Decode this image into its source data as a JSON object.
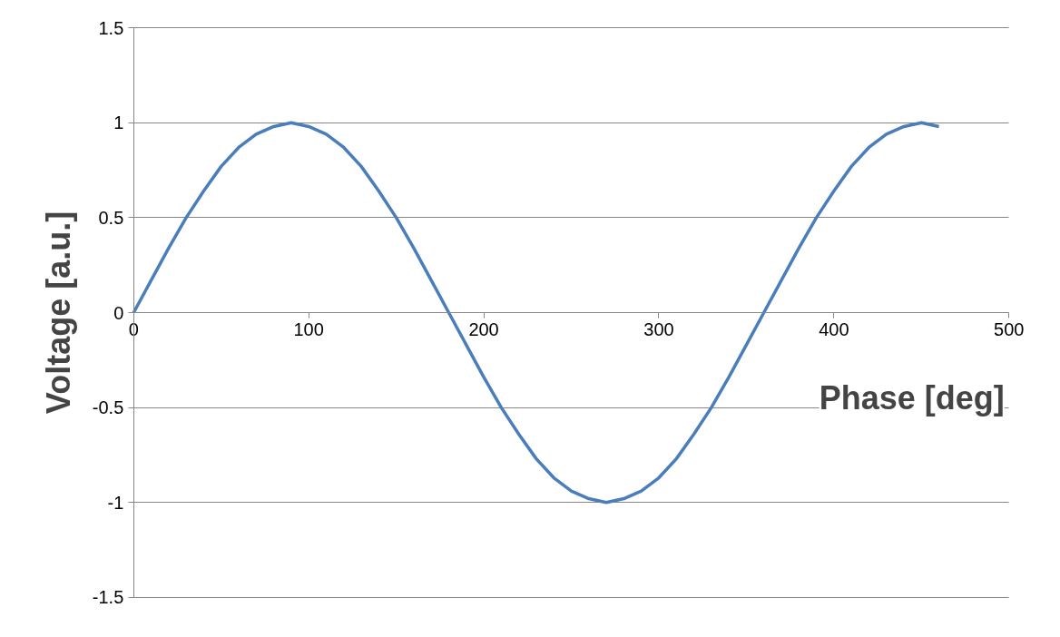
{
  "chart_data": {
    "type": "line",
    "xlabel": "Phase [deg]",
    "ylabel": "Voltage [a.u.]",
    "x": [
      0,
      10,
      20,
      30,
      40,
      50,
      60,
      70,
      80,
      90,
      100,
      110,
      120,
      130,
      140,
      150,
      160,
      170,
      180,
      190,
      200,
      210,
      220,
      230,
      240,
      250,
      260,
      270,
      280,
      290,
      300,
      310,
      320,
      330,
      340,
      350,
      360,
      370,
      380,
      390,
      400,
      410,
      420,
      430,
      440,
      450,
      460
    ],
    "series": [
      {
        "color": "#4a7ebb",
        "values": [
          0,
          0.17,
          0.34,
          0.5,
          0.64,
          0.77,
          0.87,
          0.94,
          0.98,
          1,
          0.98,
          0.94,
          0.87,
          0.77,
          0.64,
          0.5,
          0.34,
          0.17,
          0,
          -0.17,
          -0.34,
          -0.5,
          -0.64,
          -0.77,
          -0.87,
          -0.94,
          -0.98,
          -1,
          -0.98,
          -0.94,
          -0.87,
          -0.77,
          -0.64,
          -0.5,
          -0.34,
          -0.17,
          0,
          0.17,
          0.34,
          0.5,
          0.64,
          0.77,
          0.87,
          0.94,
          0.98,
          1,
          0.98
        ]
      }
    ],
    "xlim": [
      0,
      500
    ],
    "xticks": [
      0,
      100,
      200,
      300,
      400,
      500
    ],
    "ylim": [
      -1.5,
      1.5
    ],
    "yticks": [
      -1.5,
      -1,
      -0.5,
      0,
      0.5,
      1,
      1.5
    ],
    "grid": "y",
    "marker": "none",
    "line_style": "solid"
  }
}
